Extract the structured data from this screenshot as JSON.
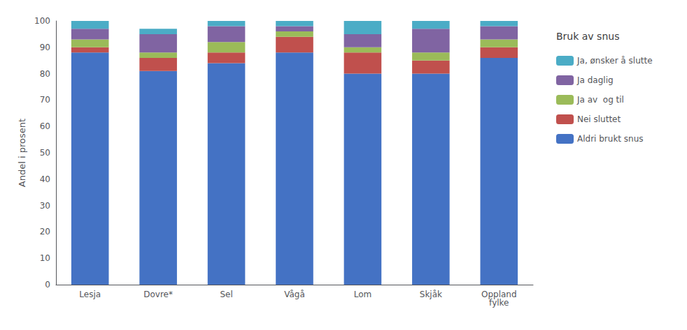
{
  "chart_data": {
    "type": "bar",
    "stacked": true,
    "categories": [
      "Lesja",
      "Dovre*",
      "Sel",
      "Vågå",
      "Lom",
      "Skjåk",
      "Oppland\nfylke"
    ],
    "series": [
      {
        "name": "Aldri brukt snus",
        "color": "#4472C4",
        "values": [
          88,
          81,
          84,
          88,
          80,
          80,
          86
        ]
      },
      {
        "name": "Nei sluttet",
        "color": "#C0504D",
        "values": [
          2,
          5,
          4,
          6,
          8,
          5,
          4
        ]
      },
      {
        "name": "Ja av  og til",
        "color": "#9BBB59",
        "values": [
          3,
          2,
          4,
          2,
          2,
          3,
          3
        ]
      },
      {
        "name": "Ja daglig",
        "color": "#8064A2",
        "values": [
          4,
          7,
          6,
          2,
          5,
          9,
          5
        ]
      },
      {
        "name": "Ja, ønsker å slutte",
        "color": "#4BACC6",
        "values": [
          3,
          2,
          2,
          2,
          5,
          3,
          2
        ]
      }
    ],
    "ylabel": "Andel i prosent",
    "legend_title": "Bruk av snus",
    "legend": "right",
    "ylim": [
      0,
      100
    ],
    "yticks": [
      0,
      10,
      20,
      30,
      40,
      50,
      60,
      70,
      80,
      90,
      100
    ],
    "grid": false
  }
}
